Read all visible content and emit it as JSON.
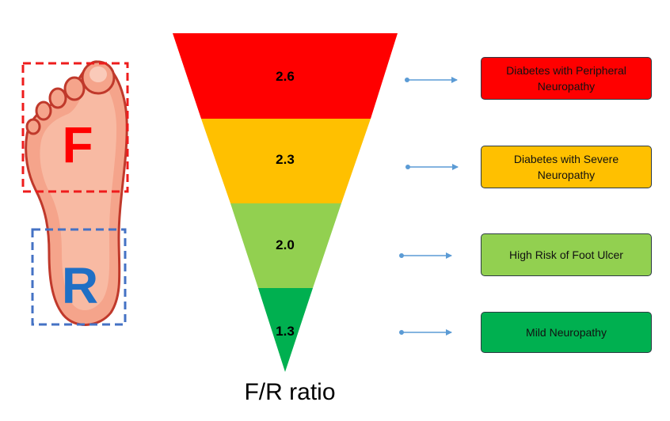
{
  "foot": {
    "front_label": "F",
    "rear_label": "R",
    "front_color": "#ff0000",
    "rear_color": "#1f6fc5",
    "front_box_color": "#ee1c1c",
    "rear_box_color": "#4472c4"
  },
  "pyramid": {
    "levels": [
      {
        "value": "2.6",
        "color": "#ff0000"
      },
      {
        "value": "2.3",
        "color": "#ffc000"
      },
      {
        "value": "2.0",
        "color": "#92d050"
      },
      {
        "value": "1.3",
        "color": "#00b050"
      }
    ],
    "axis_label": "F/R ratio"
  },
  "arrow_color": "#5b9bd5",
  "categories": [
    {
      "label": "Diabetes with Peripheral Neuropathy",
      "color": "#ff0000"
    },
    {
      "label": "Diabetes with Severe Neuropathy",
      "color": "#ffc000"
    },
    {
      "label": "High Risk of Foot Ulcer",
      "color": "#92d050"
    },
    {
      "label": "Mild Neuropathy",
      "color": "#00b050"
    }
  ]
}
